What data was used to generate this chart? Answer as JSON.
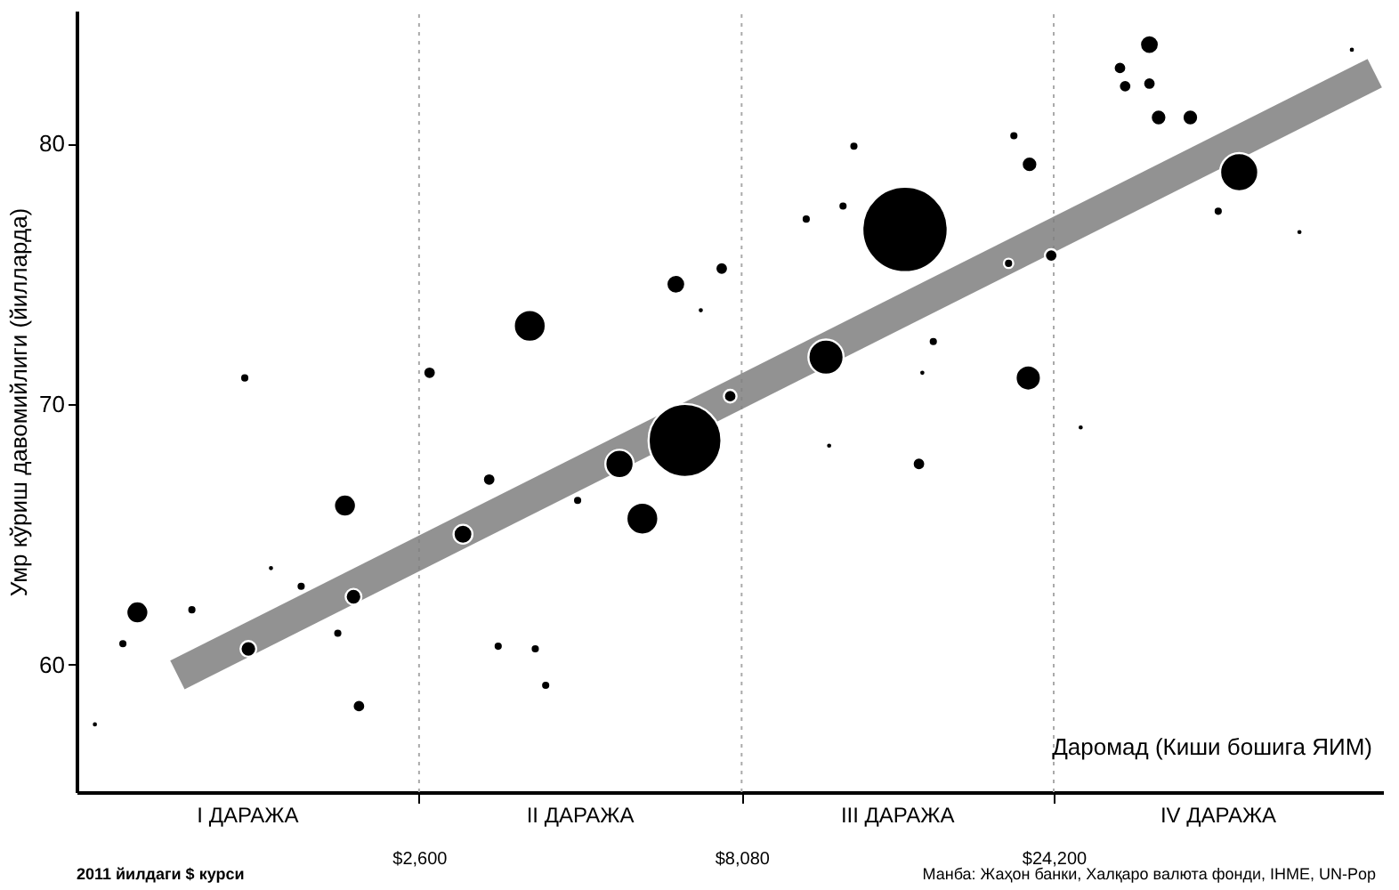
{
  "chart_data": {
    "type": "bubble",
    "ylabel": "Умр кўриш давомийлиги (йилларда)",
    "xlabel": "Даромад (Киши бошига ЯИМ)",
    "log": "x",
    "xlim": [
      780,
      77000
    ],
    "ylim": [
      55.1,
      85.1
    ],
    "xticks": [
      {
        "value": 2600,
        "label": "$2,600"
      },
      {
        "value": 8080,
        "label": "$8,080"
      },
      {
        "value": 24200,
        "label": "$24,200"
      }
    ],
    "yticks": [
      60,
      70,
      80
    ],
    "grid": false,
    "ref_lines": [
      {
        "axis": "x",
        "value": 2600,
        "label": null,
        "color": "#aaaaaa",
        "line_style": "dotted"
      },
      {
        "axis": "x",
        "value": 8080,
        "label": null,
        "color": "#aaaaaa",
        "line_style": "dotted"
      },
      {
        "axis": "x",
        "value": 24200,
        "label": null,
        "color": "#aaaaaa",
        "line_style": "dotted"
      }
    ],
    "annotations": [
      "I ДАРАЖА",
      "II ДАРАЖА",
      "III ДАРАЖА",
      "IV ДАРАЖА",
      "2011 йилдаги $ курси",
      "Манба: Жаҳон банки, Халқаро валюта фонди, IHME, UN-Pop"
    ],
    "series": [
      {
        "type": "line",
        "color": "#7f7f7f",
        "x": [
          1112,
          74800
        ],
        "values": [
          59.6,
          82.7
        ]
      },
      {
        "color": "#000000",
        "x": [
          832,
          966,
          918,
          1170,
          1409,
          1545,
          2004,
          2698,
          3837,
          6622,
          5260,
          5700,
          3034,
          2065,
          1427,
          2105,
          1718,
          6412,
          3327,
          3434,
          3912,
          4058,
          4540,
          1954,
          14350,
          10870,
          22130,
          46450,
          33880,
          15070,
          23990,
          20650,
          11990,
          22230,
          34990,
          39120,
          30550,
          31110,
          33880,
          43150,
          57410,
          69020,
          7534,
          10140,
          15850,
          15250,
          26610,
          21040,
          11540,
          7000,
          10990,
          7762
        ],
        "values": [
          57.7,
          62.0,
          60.8,
          62.1,
          71.0,
          63.7,
          66.1,
          71.2,
          73.0,
          68.6,
          67.7,
          65.6,
          65.0,
          62.6,
          60.6,
          58.4,
          63.0,
          74.6,
          67.1,
          60.7,
          60.6,
          59.2,
          66.3,
          61.2,
          76.7,
          71.8,
          71.0,
          78.9,
          83.8,
          67.7,
          75.7,
          75.4,
          79.9,
          79.2,
          81.0,
          81.0,
          82.9,
          82.2,
          82.3,
          77.4,
          76.6,
          83.6,
          75.2,
          77.1,
          72.4,
          71.2,
          69.1,
          80.3,
          77.6,
          73.6,
          68.4,
          70.3
        ],
        "sizes": [
          0.0055,
          0.067,
          0.012,
          0.012,
          0.012,
          0.0055,
          0.067,
          0.022,
          0.14,
          0.73,
          0.11,
          0.14,
          0.049,
          0.034,
          0.034,
          0.022,
          0.012,
          0.049,
          0.022,
          0.012,
          0.012,
          0.012,
          0.012,
          0.012,
          1,
          0.17,
          0.088,
          0.2,
          0.049,
          0.022,
          0.022,
          0.012,
          0.012,
          0.034,
          0.034,
          0.034,
          0.022,
          0.022,
          0.022,
          0.012,
          0.0055,
          0.0055,
          0.022,
          0.012,
          0.012,
          0.0055,
          0.0055,
          0.012,
          0.012,
          0.0055,
          0.0055,
          0.022
        ]
      }
    ]
  }
}
